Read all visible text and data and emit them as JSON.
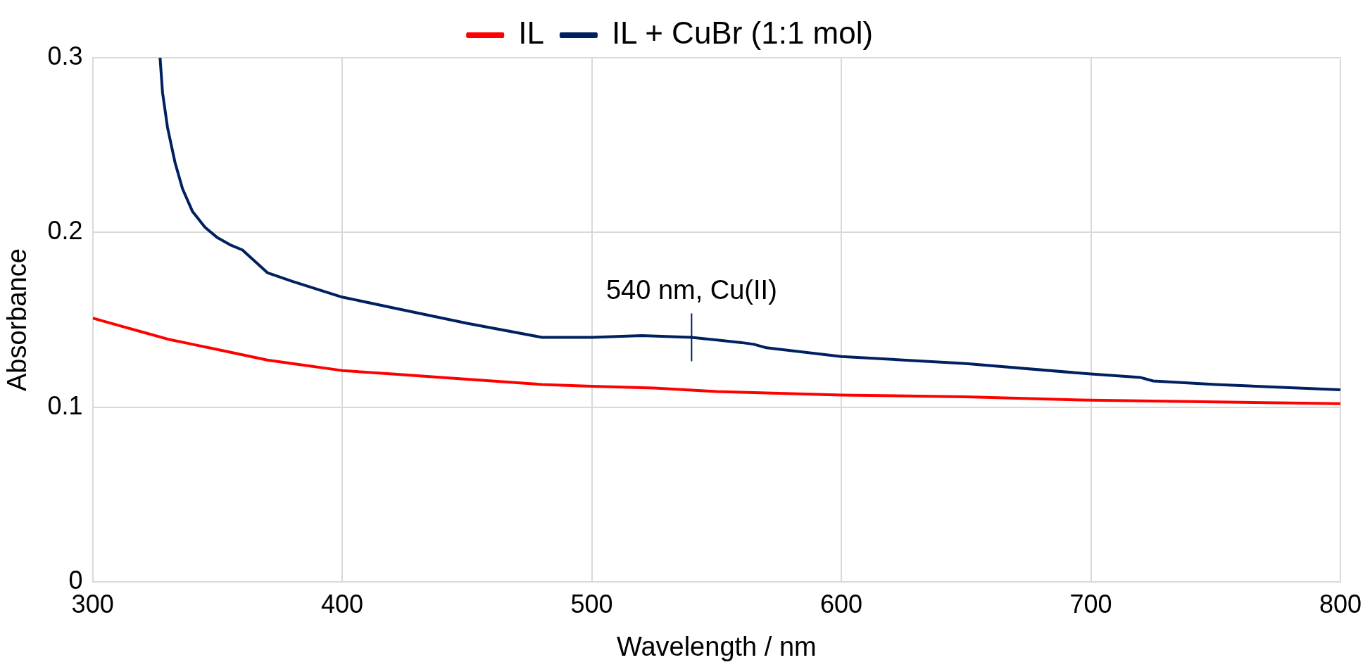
{
  "chart_data": {
    "type": "line",
    "xlabel": "Wavelength / nm",
    "ylabel": "Absorbance",
    "xlim": [
      300,
      800
    ],
    "xticks": [
      300,
      400,
      500,
      600,
      700,
      800
    ],
    "ylim": [
      0,
      0.3
    ],
    "yticks": [
      0,
      0.1,
      0.2,
      0.3
    ],
    "grid": true,
    "legend": "top",
    "marker": "none",
    "line_style": "solid",
    "annotations": [
      {
        "text": "540 nm, Cu(II)",
        "x": 540,
        "y": 0.14
      }
    ],
    "series": [
      {
        "name": "IL",
        "color": "#ff0000",
        "x": [
          300,
          310,
          320,
          330,
          340,
          350,
          360,
          370,
          380,
          400,
          420,
          450,
          480,
          500,
          525,
          550,
          575,
          600,
          650,
          700,
          750,
          800
        ],
        "values": [
          0.151,
          0.147,
          0.143,
          0.139,
          0.136,
          0.133,
          0.13,
          0.127,
          0.125,
          0.121,
          0.119,
          0.116,
          0.113,
          0.112,
          0.111,
          0.109,
          0.108,
          0.107,
          0.106,
          0.104,
          0.103,
          0.102
        ]
      },
      {
        "name": "IL + CuBr (1:1 mol)",
        "color": "#002060",
        "x": [
          327,
          328,
          330,
          333,
          336,
          340,
          345,
          350,
          355,
          360,
          370,
          380,
          400,
          420,
          450,
          480,
          500,
          520,
          540,
          560,
          565,
          570,
          600,
          650,
          700,
          720,
          725,
          750,
          800
        ],
        "values": [
          0.3,
          0.28,
          0.26,
          0.24,
          0.225,
          0.212,
          0.203,
          0.197,
          0.193,
          0.19,
          0.177,
          0.172,
          0.163,
          0.157,
          0.148,
          0.14,
          0.14,
          0.141,
          0.14,
          0.137,
          0.136,
          0.134,
          0.129,
          0.125,
          0.119,
          0.117,
          0.115,
          0.113,
          0.11
        ]
      }
    ]
  }
}
